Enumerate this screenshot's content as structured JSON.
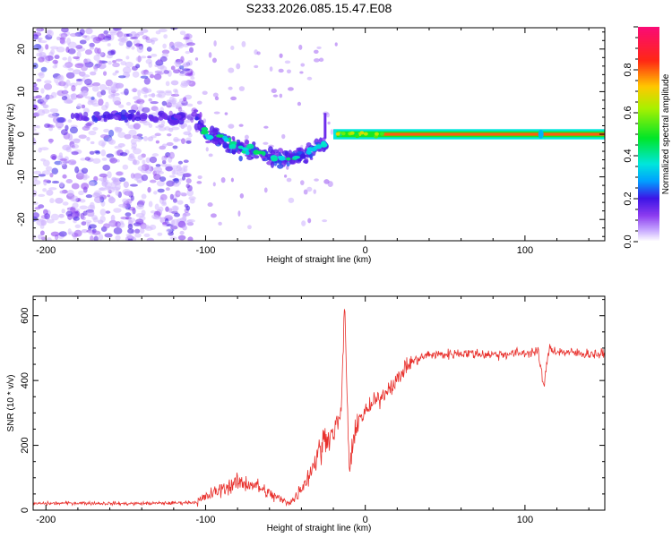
{
  "title": "S233.2026.085.15.47.E08",
  "chart_data": [
    {
      "type": "heatmap",
      "name": "spectrogram",
      "xlabel": "Height of straight line (km)",
      "ylabel": "Frequency (Hz)",
      "xlim": [
        -208,
        150
      ],
      "ylim": [
        -25,
        25
      ],
      "xticks": [
        -200,
        -100,
        0,
        100
      ],
      "yticks": [
        -20,
        -10,
        0,
        10,
        20
      ],
      "colorbar": {
        "label": "Normalized spectral amplitude",
        "range": [
          0,
          1
        ],
        "ticks": [
          0.0,
          0.2,
          0.4,
          0.6,
          0.8
        ]
      },
      "features": [
        {
          "region": "noise",
          "x_range": [
            -208,
            -108
          ],
          "freq_range": [
            -25,
            25
          ],
          "amplitude": 0.05
        },
        {
          "region": "descending trace",
          "points": [
            [
              -108,
              5
            ],
            [
              -100,
              0
            ],
            [
              -90,
              -1
            ],
            [
              -80,
              -3
            ],
            [
              -70,
              -4
            ],
            [
              -60,
              -5
            ],
            [
              -50,
              -6
            ],
            [
              -40,
              -5
            ],
            [
              -30,
              -3
            ],
            [
              -25,
              -2
            ]
          ],
          "amplitude": 0.3
        },
        {
          "region": "carrier",
          "x_range": [
            -20,
            150
          ],
          "frequency": 0,
          "amplitude": 0.9
        }
      ]
    },
    {
      "type": "line",
      "name": "snr",
      "xlabel": "Height of straight line (km)",
      "ylabel": "SNR (10 * v/v)",
      "xlim": [
        -208,
        150
      ],
      "ylim": [
        0,
        660
      ],
      "xticks": [
        -200,
        -100,
        0,
        100
      ],
      "yticks": [
        0,
        200,
        400,
        600
      ],
      "color": "#e8302c",
      "series": [
        {
          "name": "SNR",
          "x": [
            -208,
            -180,
            -150,
            -120,
            -105,
            -100,
            -90,
            -80,
            -70,
            -60,
            -50,
            -45,
            -40,
            -35,
            -30,
            -25,
            -20,
            -15,
            -13,
            -10,
            -5,
            0,
            5,
            10,
            15,
            20,
            25,
            30,
            35,
            40,
            50,
            60,
            80,
            100,
            108,
            112,
            115,
            120,
            130,
            150
          ],
          "y": [
            20,
            22,
            20,
            22,
            25,
            40,
            65,
            85,
            80,
            50,
            25,
            30,
            70,
            110,
            170,
            220,
            240,
            300,
            640,
            120,
            280,
            300,
            330,
            350,
            380,
            400,
            440,
            460,
            470,
            480,
            480,
            485,
            480,
            485,
            490,
            380,
            500,
            490,
            485,
            480
          ]
        }
      ]
    }
  ]
}
